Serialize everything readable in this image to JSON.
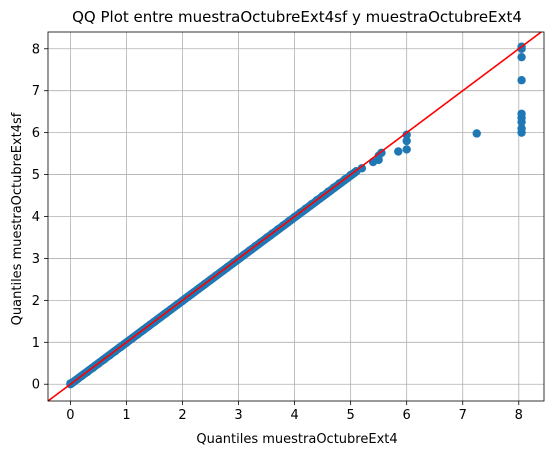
{
  "chart_data": {
    "type": "scatter",
    "title": "QQ Plot entre muestraOctubreExt4sf y muestraOctubreExt4",
    "xlabel": "Quantiles muestraOctubreExt4",
    "ylabel": "Quantiles muestraOctubreExt4sf",
    "xlim": [
      -0.4,
      8.45
    ],
    "ylim": [
      -0.4,
      8.4
    ],
    "xticks": [
      0,
      1,
      2,
      3,
      4,
      5,
      6,
      7,
      8
    ],
    "yticks": [
      0,
      1,
      2,
      3,
      4,
      5,
      6,
      7,
      8
    ],
    "grid": true,
    "colors": {
      "points": "#1f77b4",
      "reference_line": "#ff0000"
    },
    "reference_line": {
      "slope": 1,
      "intercept": 0
    },
    "series": [
      {
        "x": [
          0.0,
          0.05,
          0.1,
          0.2,
          0.3,
          0.4,
          0.5,
          0.6,
          0.7,
          0.8,
          0.9,
          1.0,
          1.1,
          1.2,
          1.3,
          1.4,
          1.5,
          1.6,
          1.7,
          1.8,
          1.9,
          2.0,
          2.1,
          2.2,
          2.3,
          2.4,
          2.5,
          2.6,
          2.7,
          2.8,
          2.9,
          3.0,
          3.1,
          3.2,
          3.3,
          3.4,
          3.5,
          3.6,
          3.7,
          3.8,
          3.9,
          4.0,
          4.1,
          4.2,
          4.3,
          4.4,
          4.5,
          4.6,
          4.7,
          4.8,
          4.9,
          5.0,
          5.1,
          5.2,
          5.4,
          5.5,
          5.5,
          5.55,
          5.85,
          6.0,
          6.0,
          6.0,
          7.25,
          8.05,
          8.05,
          8.05,
          8.05,
          8.05,
          8.05,
          8.05,
          8.05,
          8.05
        ],
        "y": [
          0.02,
          0.05,
          0.1,
          0.2,
          0.29,
          0.39,
          0.49,
          0.59,
          0.69,
          0.79,
          0.89,
          0.99,
          1.09,
          1.19,
          1.29,
          1.39,
          1.49,
          1.59,
          1.69,
          1.79,
          1.89,
          1.99,
          2.09,
          2.19,
          2.29,
          2.39,
          2.49,
          2.59,
          2.69,
          2.79,
          2.89,
          2.99,
          3.09,
          3.19,
          3.29,
          3.39,
          3.49,
          3.59,
          3.69,
          3.79,
          3.89,
          3.99,
          4.09,
          4.19,
          4.29,
          4.39,
          4.49,
          4.59,
          4.69,
          4.79,
          4.89,
          4.99,
          5.08,
          5.15,
          5.3,
          5.35,
          5.45,
          5.52,
          5.55,
          5.6,
          5.8,
          5.95,
          5.98,
          6.0,
          6.1,
          6.25,
          6.35,
          6.45,
          7.25,
          7.8,
          8.05,
          8.0
        ]
      }
    ]
  }
}
